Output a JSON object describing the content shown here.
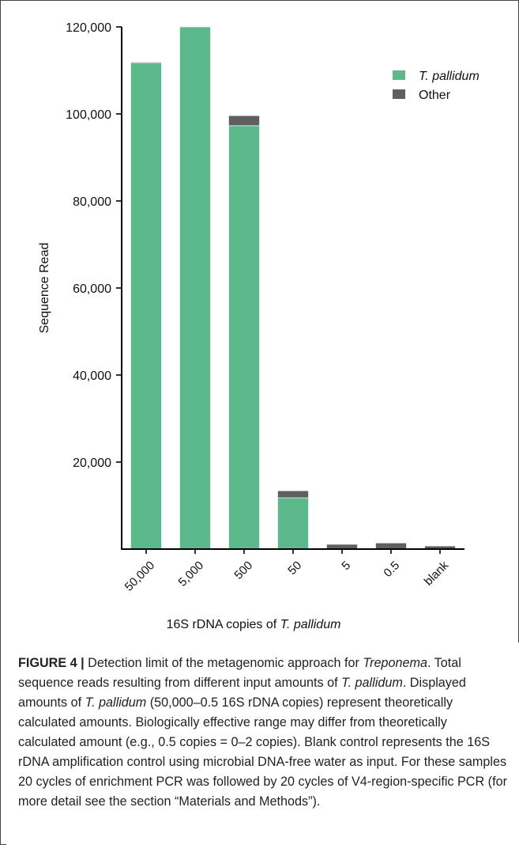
{
  "chart_data": {
    "type": "bar",
    "stacked": true,
    "categories": [
      "50,000",
      "5,000",
      "500",
      "50",
      "5",
      "0.5",
      "blank"
    ],
    "series": [
      {
        "name": "T. pallidum",
        "color": "#5bb98b",
        "values": [
          111700,
          120000,
          97300,
          11800,
          0,
          0,
          0
        ]
      },
      {
        "name": "Other",
        "color": "#5f5f5f",
        "values": [
          200,
          0,
          2300,
          1600,
          1100,
          1400,
          700
        ]
      }
    ],
    "ylabel": "Sequence Read",
    "xlabel_prefix": "16S rDNA copies of ",
    "xlabel_italic": "T. pallidum",
    "ylim": [
      0,
      120000
    ],
    "yticks": [
      20000,
      40000,
      60000,
      80000,
      100000,
      120000
    ],
    "ytick_labels": [
      "20,000",
      "40,000",
      "60,000",
      "80,000",
      "100,000",
      "120,000"
    ],
    "legend_position": "top-right",
    "grid": false
  },
  "caption": {
    "label": "FIGURE 4 |",
    "text_1": " Detection limit of the metagenomic approach for ",
    "italic_1": "Treponema",
    "text_2": ". Total sequence reads resulting from different input amounts of ",
    "italic_2": "T. pallidum",
    "text_3": ". Displayed amounts of ",
    "italic_3": "T. pallidum",
    "text_4": " (50,000–0.5 16S rDNA copies) represent theoretically calculated amounts. Biologically effective range may differ from theoretically calculated amount (e.g., 0.5 copies = 0–2 copies). Blank control represents the 16S rDNA amplification control using microbial DNA-free water as input. For these samples 20 cycles of enrichment PCR was followed by 20 cycles of V4-region-specific PCR (for more detail see the section “Materials and Methods”)."
  }
}
